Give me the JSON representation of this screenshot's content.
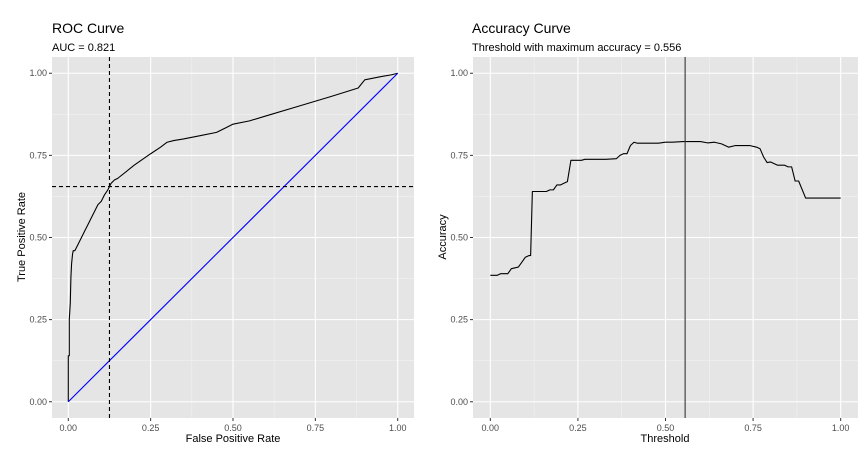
{
  "chart_data": [
    {
      "type": "line",
      "title": "ROC Curve",
      "subtitle": "AUC = 0.821",
      "xlabel": "False Positive Rate",
      "ylabel": "True Positive Rate",
      "xlim": [
        0,
        1
      ],
      "ylim": [
        0,
        1
      ],
      "xticks": [
        "0.00",
        "0.25",
        "0.50",
        "0.75",
        "1.00"
      ],
      "yticks": [
        "0.00",
        "0.25",
        "0.50",
        "0.75",
        "1.00"
      ],
      "grid": true,
      "series": [
        {
          "color": "#000000",
          "x": [
            0.0,
            0.0,
            0.003,
            0.003,
            0.006,
            0.008,
            0.01,
            0.013,
            0.015,
            0.018,
            0.02,
            0.025,
            0.03,
            0.04,
            0.05,
            0.06,
            0.07,
            0.08,
            0.09,
            0.1,
            0.11,
            0.12,
            0.125,
            0.13,
            0.14,
            0.15,
            0.2,
            0.25,
            0.28,
            0.3,
            0.32,
            0.35,
            0.4,
            0.45,
            0.48,
            0.5,
            0.55,
            0.6,
            0.7,
            0.8,
            0.88,
            0.9,
            0.95,
            0.98,
            1.0
          ],
          "y": [
            0.0,
            0.14,
            0.14,
            0.25,
            0.3,
            0.38,
            0.42,
            0.45,
            0.46,
            0.46,
            0.46,
            0.47,
            0.48,
            0.5,
            0.52,
            0.54,
            0.56,
            0.58,
            0.6,
            0.61,
            0.63,
            0.645,
            0.655,
            0.665,
            0.675,
            0.68,
            0.72,
            0.755,
            0.775,
            0.79,
            0.795,
            0.8,
            0.81,
            0.82,
            0.835,
            0.845,
            0.855,
            0.87,
            0.9,
            0.93,
            0.955,
            0.98,
            0.99,
            0.995,
            1.0
          ]
        },
        {
          "color": "#0000ff",
          "x": [
            0,
            1
          ],
          "y": [
            0,
            1
          ]
        }
      ],
      "reference_lines": {
        "vertical_x": 0.125,
        "horizontal_y": 0.655,
        "style": "dashed"
      }
    },
    {
      "type": "line",
      "title": "Accuracy Curve",
      "subtitle": "Threshold with maximum accuracy = 0.556",
      "xlabel": "Threshold",
      "ylabel": "Accuracy",
      "xlim": [
        0,
        1
      ],
      "ylim": [
        0,
        1
      ],
      "xticks": [
        "0.00",
        "0.25",
        "0.50",
        "0.75",
        "1.00"
      ],
      "yticks": [
        "0.00",
        "0.25",
        "0.50",
        "0.75",
        "1.00"
      ],
      "grid": true,
      "series": [
        {
          "color": "#000000",
          "x": [
            0.0,
            0.02,
            0.03,
            0.05,
            0.06,
            0.08,
            0.09,
            0.1,
            0.11,
            0.115,
            0.12,
            0.14,
            0.16,
            0.17,
            0.18,
            0.19,
            0.2,
            0.21,
            0.22,
            0.23,
            0.24,
            0.25,
            0.26,
            0.27,
            0.3,
            0.33,
            0.36,
            0.37,
            0.38,
            0.39,
            0.4,
            0.41,
            0.42,
            0.45,
            0.48,
            0.5,
            0.52,
            0.55,
            0.58,
            0.6,
            0.62,
            0.64,
            0.66,
            0.68,
            0.7,
            0.72,
            0.74,
            0.76,
            0.77,
            0.78,
            0.79,
            0.8,
            0.82,
            0.84,
            0.85,
            0.86,
            0.87,
            0.88,
            0.9,
            0.95,
            1.0
          ],
          "y": [
            0.385,
            0.385,
            0.39,
            0.39,
            0.405,
            0.41,
            0.425,
            0.44,
            0.445,
            0.445,
            0.64,
            0.64,
            0.64,
            0.645,
            0.645,
            0.66,
            0.66,
            0.665,
            0.67,
            0.735,
            0.735,
            0.735,
            0.735,
            0.738,
            0.738,
            0.738,
            0.74,
            0.75,
            0.755,
            0.755,
            0.78,
            0.79,
            0.787,
            0.787,
            0.787,
            0.79,
            0.79,
            0.792,
            0.792,
            0.792,
            0.788,
            0.79,
            0.785,
            0.775,
            0.78,
            0.78,
            0.78,
            0.775,
            0.77,
            0.745,
            0.728,
            0.73,
            0.72,
            0.72,
            0.715,
            0.715,
            0.672,
            0.672,
            0.62,
            0.62,
            0.62
          ]
        }
      ],
      "reference_lines": {
        "vertical_x": 0.556,
        "style": "solid"
      }
    }
  ]
}
